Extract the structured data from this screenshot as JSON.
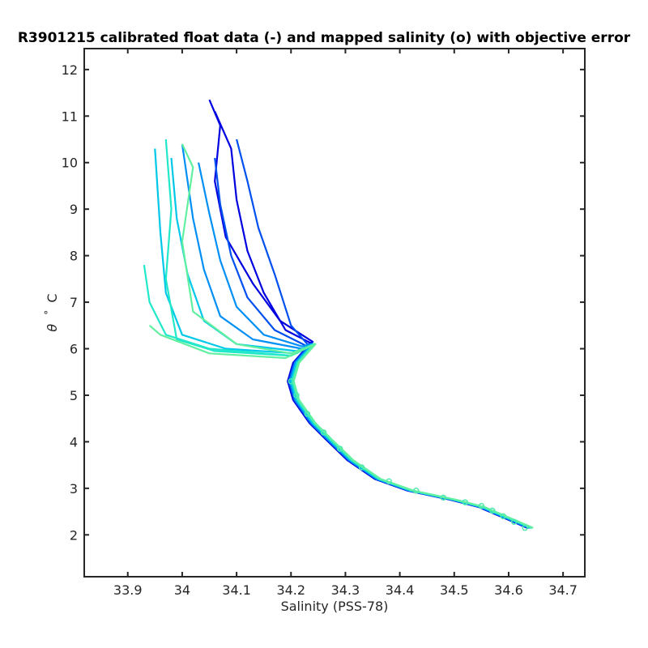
{
  "chart_data": {
    "type": "line",
    "title": "R3901215 calibrated float data (-) and mapped salinity (o) with objective error",
    "xlabel": "Salinity (PSS-78)",
    "ylabel_theta": "θ",
    "ylabel_deg": "°",
    "ylabel_unit": "C",
    "xlim": [
      33.82,
      34.74
    ],
    "ylim": [
      1.1,
      12.45
    ],
    "xticks": [
      "33.9",
      "34",
      "34.1",
      "34.2",
      "34.3",
      "34.4",
      "34.5",
      "34.6",
      "34.7"
    ],
    "yticks": [
      "2",
      "3",
      "4",
      "5",
      "6",
      "7",
      "8",
      "9",
      "10",
      "11",
      "12"
    ],
    "grid": false,
    "colormap": [
      "#0000e0",
      "#0050f0",
      "#0090f5",
      "#00c8e8",
      "#20e8c8",
      "#60f0a0"
    ],
    "deep_profile": [
      [
        34.64,
        2.15
      ],
      [
        34.62,
        2.25
      ],
      [
        34.59,
        2.4
      ],
      [
        34.55,
        2.6
      ],
      [
        34.5,
        2.75
      ],
      [
        34.42,
        2.95
      ],
      [
        34.36,
        3.2
      ],
      [
        34.31,
        3.6
      ],
      [
        34.27,
        4.05
      ],
      [
        34.24,
        4.4
      ],
      [
        34.21,
        4.9
      ],
      [
        34.2,
        5.3
      ],
      [
        34.21,
        5.7
      ],
      [
        34.24,
        6.1
      ]
    ],
    "mapped_points": [
      [
        34.63,
        2.15
      ],
      [
        34.61,
        2.28
      ],
      [
        34.59,
        2.4
      ],
      [
        34.57,
        2.52
      ],
      [
        34.55,
        2.62
      ],
      [
        34.52,
        2.7
      ],
      [
        34.48,
        2.8
      ],
      [
        34.43,
        2.95
      ],
      [
        34.38,
        3.15
      ],
      [
        34.33,
        3.45
      ],
      [
        34.29,
        3.85
      ],
      [
        34.26,
        4.2
      ],
      [
        34.23,
        4.6
      ],
      [
        34.21,
        5.0
      ],
      [
        34.2,
        5.3
      ]
    ],
    "profiles": [
      {
        "values": [
          [
            34.24,
            6.15
          ],
          [
            34.18,
            6.6
          ],
          [
            34.13,
            7.4
          ],
          [
            34.08,
            8.4
          ],
          [
            34.06,
            9.6
          ],
          [
            34.07,
            10.8
          ],
          [
            34.05,
            11.35
          ]
        ]
      },
      {
        "values": [
          [
            34.24,
            6.1
          ],
          [
            34.19,
            6.4
          ],
          [
            34.15,
            7.2
          ],
          [
            34.12,
            8.1
          ],
          [
            34.1,
            9.2
          ],
          [
            34.09,
            10.3
          ],
          [
            34.06,
            11.1
          ]
        ]
      },
      {
        "values": [
          [
            34.23,
            6.1
          ],
          [
            34.2,
            6.5
          ],
          [
            34.17,
            7.6
          ],
          [
            34.14,
            8.6
          ],
          [
            34.12,
            9.6
          ],
          [
            34.1,
            10.5
          ]
        ]
      },
      {
        "values": [
          [
            34.23,
            6.05
          ],
          [
            34.17,
            6.4
          ],
          [
            34.12,
            7.1
          ],
          [
            34.09,
            8.0
          ],
          [
            34.07,
            9.1
          ],
          [
            34.06,
            10.1
          ]
        ]
      },
      {
        "values": [
          [
            34.22,
            6.05
          ],
          [
            34.15,
            6.3
          ],
          [
            34.1,
            6.9
          ],
          [
            34.07,
            7.9
          ],
          [
            34.05,
            8.9
          ],
          [
            34.03,
            10.0
          ]
        ]
      },
      {
        "values": [
          [
            34.22,
            6.0
          ],
          [
            34.13,
            6.2
          ],
          [
            34.07,
            6.7
          ],
          [
            34.04,
            7.7
          ],
          [
            34.02,
            8.8
          ],
          [
            34.0,
            10.4
          ]
        ]
      },
      {
        "values": [
          [
            34.21,
            5.95
          ],
          [
            34.1,
            6.1
          ],
          [
            34.04,
            6.6
          ],
          [
            34.01,
            7.6
          ],
          [
            33.99,
            8.8
          ],
          [
            33.98,
            10.1
          ]
        ]
      },
      {
        "values": [
          [
            34.21,
            5.9
          ],
          [
            34.08,
            6.0
          ],
          [
            34.0,
            6.3
          ],
          [
            33.97,
            7.2
          ],
          [
            33.96,
            8.5
          ],
          [
            33.95,
            10.3
          ]
        ]
      },
      {
        "values": [
          [
            34.2,
            5.85
          ],
          [
            34.05,
            6.0
          ],
          [
            33.97,
            6.3
          ],
          [
            33.94,
            7.0
          ],
          [
            33.93,
            7.8
          ]
        ]
      },
      {
        "values": [
          [
            34.2,
            5.85
          ],
          [
            34.06,
            5.95
          ],
          [
            33.99,
            6.2
          ],
          [
            33.97,
            7.5
          ],
          [
            33.98,
            9.0
          ],
          [
            33.97,
            10.5
          ]
        ]
      },
      {
        "values": [
          [
            34.19,
            5.8
          ],
          [
            34.05,
            5.9
          ],
          [
            33.96,
            6.3
          ],
          [
            33.94,
            6.5
          ]
        ]
      },
      {
        "values": [
          [
            34.2,
            5.9
          ],
          [
            34.1,
            6.1
          ],
          [
            34.02,
            6.8
          ],
          [
            34.0,
            8.3
          ],
          [
            34.02,
            9.9
          ],
          [
            34.0,
            10.4
          ]
        ]
      }
    ]
  }
}
